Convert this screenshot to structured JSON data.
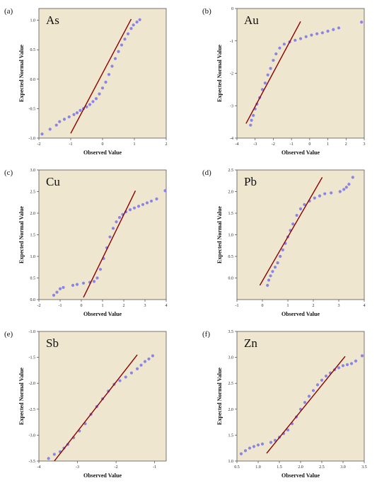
{
  "colors": {
    "background": "#efe6cf",
    "points": "#8a84e6",
    "reference_line": "#8b0000"
  },
  "chart_data": [
    {
      "type": "scatter",
      "panel": "(a)",
      "label": "As",
      "xlabel": "Observed Value",
      "ylabel": "Expected Normal Value",
      "xlim": [
        -2,
        2
      ],
      "ylim": [
        -1.0,
        1.2
      ],
      "xticks": [
        "-2",
        "-1",
        "0",
        "1",
        "2"
      ],
      "yticks": [
        "-1.0",
        "-0.5",
        "0.0",
        "0.5",
        "1.0"
      ],
      "ytick_values": [
        -1.0,
        -0.5,
        0.0,
        0.5,
        1.0
      ],
      "reference_line": [
        [
          -1.0,
          -0.92
        ],
        [
          0.9,
          1.02
        ]
      ],
      "points": [
        [
          -1.9,
          -0.93
        ],
        [
          -1.65,
          -0.85
        ],
        [
          -1.45,
          -0.78
        ],
        [
          -1.35,
          -0.72
        ],
        [
          -1.2,
          -0.68
        ],
        [
          -1.05,
          -0.64
        ],
        [
          -0.9,
          -0.6
        ],
        [
          -0.8,
          -0.57
        ],
        [
          -0.7,
          -0.53
        ],
        [
          -0.6,
          -0.5
        ],
        [
          -0.5,
          -0.47
        ],
        [
          -0.4,
          -0.43
        ],
        [
          -0.3,
          -0.38
        ],
        [
          -0.2,
          -0.33
        ],
        [
          -0.1,
          -0.25
        ],
        [
          0.0,
          -0.15
        ],
        [
          0.1,
          -0.05
        ],
        [
          0.2,
          0.08
        ],
        [
          0.3,
          0.22
        ],
        [
          0.4,
          0.35
        ],
        [
          0.5,
          0.47
        ],
        [
          0.6,
          0.58
        ],
        [
          0.7,
          0.68
        ],
        [
          0.8,
          0.77
        ],
        [
          0.9,
          0.86
        ],
        [
          0.97,
          0.92
        ],
        [
          1.08,
          0.97
        ],
        [
          1.17,
          1.01
        ]
      ]
    },
    {
      "type": "scatter",
      "panel": "(b)",
      "label": "Au",
      "xlabel": "Observed Value",
      "ylabel": "Expected Normal Value",
      "xlim": [
        -4,
        3
      ],
      "ylim": [
        -4,
        0
      ],
      "xticks": [
        "-4",
        "-3",
        "-2",
        "-1",
        "0",
        "1",
        "2",
        "3"
      ],
      "yticks": [
        "-4",
        "-3",
        "-2",
        "-1",
        "0"
      ],
      "ytick_values": [
        -4,
        -3,
        -2,
        -1,
        0
      ],
      "reference_line": [
        [
          -3.5,
          -3.55
        ],
        [
          -0.5,
          -0.4
        ]
      ],
      "points": [
        [
          -3.25,
          -3.6
        ],
        [
          -3.2,
          -3.45
        ],
        [
          -3.1,
          -3.3
        ],
        [
          -3.0,
          -3.1
        ],
        [
          -2.9,
          -2.95
        ],
        [
          -2.75,
          -2.75
        ],
        [
          -2.6,
          -2.5
        ],
        [
          -2.45,
          -2.3
        ],
        [
          -2.3,
          -2.05
        ],
        [
          -2.15,
          -1.85
        ],
        [
          -2.0,
          -1.6
        ],
        [
          -1.85,
          -1.4
        ],
        [
          -1.65,
          -1.22
        ],
        [
          -1.4,
          -1.1
        ],
        [
          -1.1,
          -1.03
        ],
        [
          -0.8,
          -0.98
        ],
        [
          -0.5,
          -0.93
        ],
        [
          -0.2,
          -0.87
        ],
        [
          0.1,
          -0.82
        ],
        [
          0.4,
          -0.78
        ],
        [
          0.7,
          -0.75
        ],
        [
          1.0,
          -0.7
        ],
        [
          1.3,
          -0.65
        ],
        [
          1.6,
          -0.6
        ],
        [
          2.85,
          -0.42
        ]
      ]
    },
    {
      "type": "scatter",
      "panel": "(c)",
      "label": "Cu",
      "xlabel": "Observed Value",
      "ylabel": "Expected Normal Value",
      "xlim": [
        -2,
        4
      ],
      "ylim": [
        0.0,
        3.0
      ],
      "xticks": [
        "-2",
        "-1",
        "0",
        "1",
        "2",
        "3",
        "4"
      ],
      "yticks": [
        "0.0",
        "0.5",
        "1.0",
        "1.5",
        "2.0",
        "2.5",
        "3.0"
      ],
      "ytick_values": [
        0.0,
        0.5,
        1.0,
        1.5,
        2.0,
        2.5,
        3.0
      ],
      "reference_line": [
        [
          0.1,
          0.05
        ],
        [
          2.55,
          2.52
        ]
      ],
      "points": [
        [
          -1.3,
          0.1
        ],
        [
          -1.15,
          0.17
        ],
        [
          -1.0,
          0.25
        ],
        [
          -0.85,
          0.28
        ],
        [
          -0.4,
          0.33
        ],
        [
          -0.2,
          0.35
        ],
        [
          0.1,
          0.38
        ],
        [
          0.4,
          0.4
        ],
        [
          0.6,
          0.42
        ],
        [
          0.75,
          0.5
        ],
        [
          0.9,
          0.7
        ],
        [
          1.05,
          0.95
        ],
        [
          1.2,
          1.2
        ],
        [
          1.35,
          1.45
        ],
        [
          1.5,
          1.65
        ],
        [
          1.65,
          1.8
        ],
        [
          1.8,
          1.9
        ],
        [
          1.95,
          1.97
        ],
        [
          2.1,
          2.03
        ],
        [
          2.3,
          2.08
        ],
        [
          2.5,
          2.12
        ],
        [
          2.7,
          2.16
        ],
        [
          2.9,
          2.2
        ],
        [
          3.1,
          2.24
        ],
        [
          3.3,
          2.28
        ],
        [
          3.55,
          2.33
        ],
        [
          3.95,
          2.52
        ]
      ]
    },
    {
      "type": "scatter",
      "panel": "(d)",
      "label": "Pb",
      "xlabel": "Observed Value",
      "ylabel": "Expected Normal Value",
      "xlim": [
        -1,
        4
      ],
      "ylim": [
        -0.5,
        2.5
      ],
      "xticks": [
        "-1",
        "0",
        "1",
        "2",
        "3",
        "4"
      ],
      "yticks": [
        "0.0",
        "0.5",
        "1.0",
        "1.5",
        "2.0",
        "2.5"
      ],
      "ytick_values": [
        0.0,
        0.5,
        1.0,
        1.5,
        2.0,
        2.5
      ],
      "reference_line": [
        [
          -0.1,
          -0.17
        ],
        [
          2.35,
          2.33
        ]
      ],
      "points": [
        [
          0.2,
          -0.17
        ],
        [
          0.25,
          -0.05
        ],
        [
          0.32,
          0.05
        ],
        [
          0.4,
          0.15
        ],
        [
          0.5,
          0.25
        ],
        [
          0.6,
          0.35
        ],
        [
          0.7,
          0.5
        ],
        [
          0.8,
          0.65
        ],
        [
          0.9,
          0.8
        ],
        [
          1.0,
          0.95
        ],
        [
          1.1,
          1.1
        ],
        [
          1.2,
          1.25
        ],
        [
          1.35,
          1.45
        ],
        [
          1.5,
          1.6
        ],
        [
          1.65,
          1.7
        ],
        [
          1.85,
          1.78
        ],
        [
          2.05,
          1.85
        ],
        [
          2.25,
          1.9
        ],
        [
          2.45,
          1.95
        ],
        [
          2.7,
          1.97
        ],
        [
          3.05,
          2.0
        ],
        [
          3.2,
          2.05
        ],
        [
          3.3,
          2.1
        ],
        [
          3.4,
          2.17
        ],
        [
          3.55,
          2.33
        ]
      ]
    },
    {
      "type": "scatter",
      "panel": "(e)",
      "label": "Sb",
      "xlabel": "Observed Value",
      "ylabel": "Expected Normal Value",
      "xlim": [
        -4,
        -0.7
      ],
      "ylim": [
        -3.5,
        -1.0
      ],
      "xticks": [
        "-4",
        "-3",
        "-2",
        "-1"
      ],
      "xtick_values": [
        -4,
        -3,
        -2,
        -1
      ],
      "yticks": [
        "-3.5",
        "-3.0",
        "-2.5",
        "-2.0",
        "-1.5",
        "-1.0"
      ],
      "ytick_values": [
        -3.5,
        -3.0,
        -2.5,
        -2.0,
        -1.5,
        -1.0
      ],
      "reference_line": [
        [
          -3.6,
          -3.5
        ],
        [
          -1.45,
          -1.45
        ]
      ],
      "points": [
        [
          -3.75,
          -3.45
        ],
        [
          -3.6,
          -3.37
        ],
        [
          -3.45,
          -3.32
        ],
        [
          -3.35,
          -3.25
        ],
        [
          -3.25,
          -3.18
        ],
        [
          -3.1,
          -3.05
        ],
        [
          -2.95,
          -2.92
        ],
        [
          -2.8,
          -2.78
        ],
        [
          -2.65,
          -2.6
        ],
        [
          -2.5,
          -2.45
        ],
        [
          -2.35,
          -2.3
        ],
        [
          -2.2,
          -2.15
        ],
        [
          -2.05,
          -2.02
        ],
        [
          -1.9,
          -1.95
        ],
        [
          -1.75,
          -1.88
        ],
        [
          -1.6,
          -1.8
        ],
        [
          -1.45,
          -1.72
        ],
        [
          -1.35,
          -1.65
        ],
        [
          -1.25,
          -1.58
        ],
        [
          -1.15,
          -1.53
        ],
        [
          -1.05,
          -1.47
        ]
      ]
    },
    {
      "type": "scatter",
      "panel": "(f)",
      "label": "Zn",
      "xlabel": "Observed Value",
      "ylabel": "Expected Normal Value",
      "xlim": [
        0.5,
        3.5
      ],
      "ylim": [
        1.0,
        3.5
      ],
      "xticks": [
        "0.5",
        "1.0",
        "1.5",
        "2.0",
        "2.5",
        "3.0",
        "3.5"
      ],
      "yticks": [
        "1.0",
        "1.5",
        "2.0",
        "2.5",
        "3.0",
        "3.5"
      ],
      "ytick_values": [
        1.0,
        1.5,
        2.0,
        2.5,
        3.0,
        3.5
      ],
      "reference_line": [
        [
          1.2,
          1.15
        ],
        [
          3.05,
          3.02
        ]
      ],
      "points": [
        [
          0.6,
          1.14
        ],
        [
          0.7,
          1.2
        ],
        [
          0.8,
          1.25
        ],
        [
          0.9,
          1.28
        ],
        [
          1.0,
          1.31
        ],
        [
          1.1,
          1.33
        ],
        [
          1.3,
          1.36
        ],
        [
          1.4,
          1.4
        ],
        [
          1.5,
          1.46
        ],
        [
          1.6,
          1.53
        ],
        [
          1.7,
          1.6
        ],
        [
          1.8,
          1.72
        ],
        [
          1.9,
          1.85
        ],
        [
          2.0,
          2.0
        ],
        [
          2.1,
          2.13
        ],
        [
          2.2,
          2.25
        ],
        [
          2.3,
          2.36
        ],
        [
          2.4,
          2.47
        ],
        [
          2.5,
          2.56
        ],
        [
          2.6,
          2.64
        ],
        [
          2.7,
          2.7
        ],
        [
          2.8,
          2.76
        ],
        [
          2.9,
          2.8
        ],
        [
          3.0,
          2.84
        ],
        [
          3.1,
          2.86
        ],
        [
          3.2,
          2.88
        ],
        [
          3.3,
          2.93
        ],
        [
          3.45,
          3.03
        ]
      ]
    }
  ]
}
